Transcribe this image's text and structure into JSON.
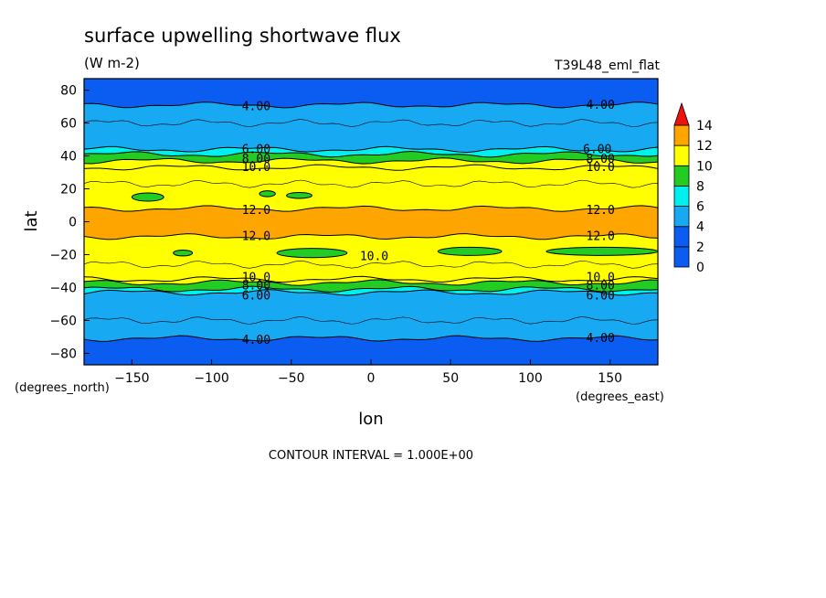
{
  "chart_data": {
    "type": "heatmap",
    "title": "surface upwelling shortwave flux",
    "subtitle": "(W m-2)",
    "run_label": "T39L48_eml_flat",
    "xlabel": "lon",
    "ylabel": "lat",
    "x_units": "(degrees_east)",
    "y_units": "(degrees_north)",
    "xlim": [
      -180,
      180
    ],
    "ylim": [
      -87,
      87
    ],
    "x_ticks": [
      -150,
      -100,
      -50,
      0,
      50,
      100,
      150
    ],
    "y_ticks": [
      80,
      60,
      40,
      20,
      0,
      -20,
      -40,
      -60,
      -80
    ],
    "footer": "CONTOUR INTERVAL = 1.000E+00",
    "colorbar": {
      "ticks": [
        0,
        2,
        4,
        6,
        8,
        10,
        12,
        14
      ],
      "levels": [
        {
          "from": 0,
          "to": 2,
          "color": "#0b5cf0"
        },
        {
          "from": 2,
          "to": 4,
          "color": "#0b5cf0"
        },
        {
          "from": 4,
          "to": 6,
          "color": "#17a9f2"
        },
        {
          "from": 6,
          "to": 8,
          "color": "#00f0f0"
        },
        {
          "from": 8,
          "to": 10,
          "color": "#22cc22"
        },
        {
          "from": 10,
          "to": 12,
          "color": "#ffff00"
        },
        {
          "from": 12,
          "to": 14,
          "color": "#ffa500"
        },
        {
          "from": 14,
          "to": 16,
          "color": "#ee1111"
        }
      ]
    },
    "bands": [
      {
        "lat_from": 87,
        "lat_to": 71,
        "level": 3
      },
      {
        "lat_from": 71,
        "lat_to": 44,
        "level": 5
      },
      {
        "lat_from": 44,
        "lat_to": 41,
        "level": 7
      },
      {
        "lat_from": 41,
        "lat_to": 37,
        "level": 9
      },
      {
        "lat_from": 37,
        "lat_to": 33,
        "level": 10
      },
      {
        "lat_from": 33,
        "lat_to": 8,
        "level": 11
      },
      {
        "lat_from": 8,
        "lat_to": -9,
        "level": 13
      },
      {
        "lat_from": -9,
        "lat_to": -35,
        "level": 11
      },
      {
        "lat_from": -35,
        "lat_to": -37,
        "level": 10
      },
      {
        "lat_from": -37,
        "lat_to": -41,
        "level": 9
      },
      {
        "lat_from": -41,
        "lat_to": -43,
        "level": 7
      },
      {
        "lat_from": -43,
        "lat_to": -71,
        "level": 5
      },
      {
        "lat_from": -71,
        "lat_to": -87,
        "level": 3
      }
    ],
    "contour_labels": [
      {
        "text": "4.00",
        "lon": -72,
        "lat": 70
      },
      {
        "text": "4.00",
        "lon": 144,
        "lat": 71
      },
      {
        "text": "6.00",
        "lon": -72,
        "lat": 44
      },
      {
        "text": "8.00",
        "lon": -72,
        "lat": 38
      },
      {
        "text": "10.0",
        "lon": -72,
        "lat": 33
      },
      {
        "text": "6.00",
        "lon": 142,
        "lat": 44
      },
      {
        "text": "8.00",
        "lon": 144,
        "lat": 38
      },
      {
        "text": "10.0",
        "lon": 144,
        "lat": 33
      },
      {
        "text": "12.0",
        "lon": -72,
        "lat": 7
      },
      {
        "text": "12.0",
        "lon": 144,
        "lat": 7
      },
      {
        "text": "12.0",
        "lon": -72,
        "lat": -9
      },
      {
        "text": "12.0",
        "lon": 144,
        "lat": -9
      },
      {
        "text": "10.0",
        "lon": 2,
        "lat": -21
      },
      {
        "text": "10.0",
        "lon": -72,
        "lat": -34
      },
      {
        "text": "8.00",
        "lon": -72,
        "lat": -39
      },
      {
        "text": "6.00",
        "lon": -72,
        "lat": -45
      },
      {
        "text": "10.0",
        "lon": 144,
        "lat": -34
      },
      {
        "text": "8.00",
        "lon": 144,
        "lat": -39
      },
      {
        "text": "6.00",
        "lon": 144,
        "lat": -45
      },
      {
        "text": "4.00",
        "lon": -72,
        "lat": -72
      },
      {
        "text": "4.00",
        "lon": 144,
        "lat": -71
      }
    ],
    "green_patches": [
      {
        "lon": -140,
        "lat": 15,
        "half_width": 10,
        "half_height": 2.5
      },
      {
        "lon": -65,
        "lat": 17,
        "half_width": 5,
        "half_height": 1.8
      },
      {
        "lon": -45,
        "lat": 16,
        "half_width": 8,
        "half_height": 1.8
      },
      {
        "lon": -37,
        "lat": -19,
        "half_width": 22,
        "half_height": 2.8
      },
      {
        "lon": 62,
        "lat": -18,
        "half_width": 20,
        "half_height": 2.5
      },
      {
        "lon": 145,
        "lat": -18,
        "half_width": 35,
        "half_height": 2.5
      },
      {
        "lon": -118,
        "lat": -19,
        "half_width": 6,
        "half_height": 1.8
      }
    ]
  }
}
